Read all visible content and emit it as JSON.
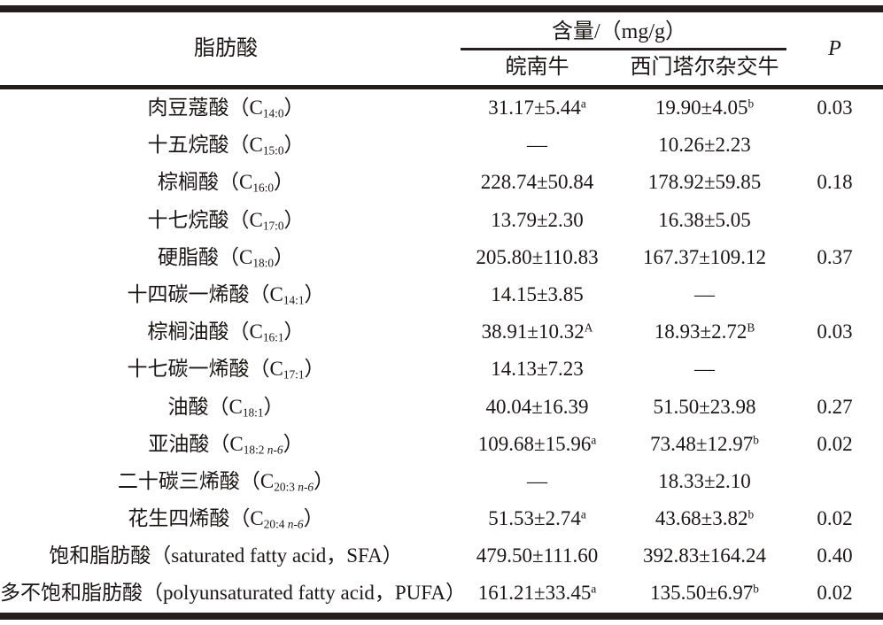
{
  "table": {
    "header": {
      "fatty_acid": "脂肪酸",
      "content_group": "含量/（mg/g）",
      "wannan": "皖南牛",
      "simmental": "西门塔尔杂交牛",
      "p": "P"
    },
    "rows": [
      {
        "pre": "肉豆蔻酸（C",
        "sub": "14:0",
        "sub_n": "",
        "post": "）",
        "wannan": {
          "text": "31.17±5.44",
          "sup": "a"
        },
        "simmental": {
          "text": "19.90±4.05",
          "sup": "b"
        },
        "p": "0.03"
      },
      {
        "pre": "十五烷酸（C",
        "sub": "15:0",
        "sub_n": "",
        "post": "）",
        "wannan": {
          "text": "—",
          "sup": ""
        },
        "simmental": {
          "text": "10.26±2.23",
          "sup": ""
        },
        "p": ""
      },
      {
        "pre": "棕榈酸（C",
        "sub": "16:0",
        "sub_n": "",
        "post": "）",
        "wannan": {
          "text": "228.74±50.84",
          "sup": ""
        },
        "simmental": {
          "text": "178.92±59.85",
          "sup": ""
        },
        "p": "0.18"
      },
      {
        "pre": "十七烷酸（C",
        "sub": "17:0",
        "sub_n": "",
        "post": "）",
        "wannan": {
          "text": "13.79±2.30",
          "sup": ""
        },
        "simmental": {
          "text": "16.38±5.05",
          "sup": ""
        },
        "p": ""
      },
      {
        "pre": "硬脂酸（C",
        "sub": "18:0",
        "sub_n": "",
        "post": "）",
        "wannan": {
          "text": "205.80±110.83",
          "sup": ""
        },
        "simmental": {
          "text": "167.37±109.12",
          "sup": ""
        },
        "p": "0.37"
      },
      {
        "pre": "十四碳一烯酸（C",
        "sub": "14:1",
        "sub_n": "",
        "post": "）",
        "wannan": {
          "text": "14.15±3.85",
          "sup": ""
        },
        "simmental": {
          "text": "—",
          "sup": ""
        },
        "p": ""
      },
      {
        "pre": "棕榈油酸（C",
        "sub": "16:1",
        "sub_n": "",
        "post": "）",
        "wannan": {
          "text": "38.91±10.32",
          "sup": "A"
        },
        "simmental": {
          "text": "18.93±2.72",
          "sup": "B"
        },
        "p": "0.03"
      },
      {
        "pre": "十七碳一烯酸（C",
        "sub": "17:1",
        "sub_n": "",
        "post": "）",
        "wannan": {
          "text": "14.13±7.23",
          "sup": ""
        },
        "simmental": {
          "text": "—",
          "sup": ""
        },
        "p": ""
      },
      {
        "pre": "油酸（C",
        "sub": "18:1",
        "sub_n": "",
        "post": "）",
        "wannan": {
          "text": "40.04±16.39",
          "sup": ""
        },
        "simmental": {
          "text": "51.50±23.98",
          "sup": ""
        },
        "p": "0.27"
      },
      {
        "pre": "亚油酸（C",
        "sub": "18:2 ",
        "sub_n": "n-6",
        "post": "）",
        "wannan": {
          "text": "109.68±15.96",
          "sup": "a"
        },
        "simmental": {
          "text": "73.48±12.97",
          "sup": "b"
        },
        "p": "0.02"
      },
      {
        "pre": "二十碳三烯酸（C",
        "sub": "20:3 ",
        "sub_n": "n-6",
        "post": "）",
        "wannan": {
          "text": "—",
          "sup": ""
        },
        "simmental": {
          "text": "18.33±2.10",
          "sup": ""
        },
        "p": ""
      },
      {
        "pre": "花生四烯酸（C",
        "sub": "20:4 ",
        "sub_n": "n-6",
        "post": "）",
        "wannan": {
          "text": "51.53±2.74",
          "sup": "a"
        },
        "simmental": {
          "text": "43.68±3.82",
          "sup": "b"
        },
        "p": "0.02"
      },
      {
        "pre": "饱和脂肪酸（saturated fatty acid，SFA）",
        "sub": "",
        "sub_n": "",
        "post": "",
        "wannan": {
          "text": "479.50±111.60",
          "sup": ""
        },
        "simmental": {
          "text": "392.83±164.24",
          "sup": ""
        },
        "p": "0.40"
      },
      {
        "pre": "多不饱和脂肪酸（polyunsaturated fatty acid，PUFA）",
        "sub": "",
        "sub_n": "",
        "post": "",
        "wannan": {
          "text": "161.21±33.45",
          "sup": "a"
        },
        "simmental": {
          "text": "135.50±6.97",
          "sup": "b"
        },
        "p": "0.02"
      }
    ]
  },
  "colors": {
    "text": "#1b1616",
    "line": "#241e1e",
    "background": "#ffffff"
  }
}
